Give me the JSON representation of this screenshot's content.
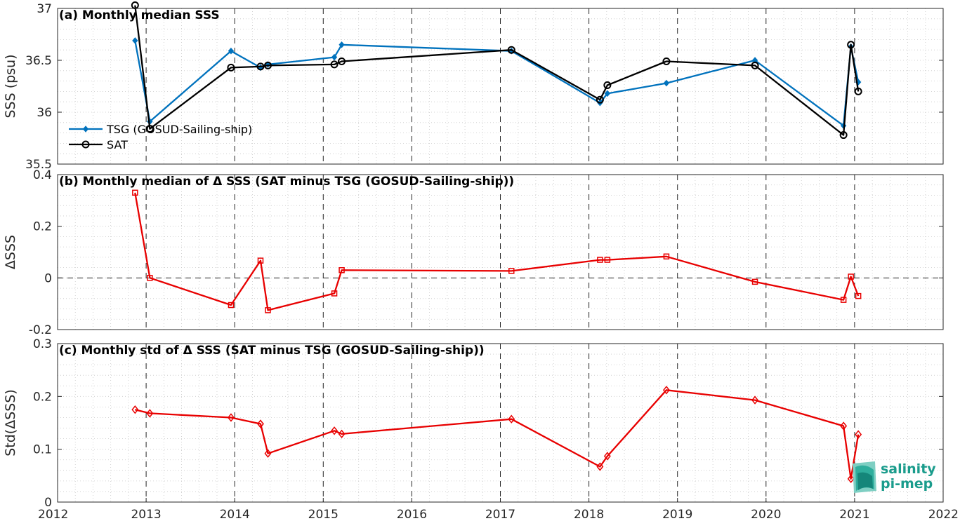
{
  "chart_data": [
    {
      "type": "line",
      "title": "(a) Monthly median SSS",
      "ylabel": "SSS (psu)",
      "ylim": [
        35.5,
        37
      ],
      "yticks": [
        35.5,
        36,
        36.5,
        37
      ],
      "ytick_labels": [
        "35.5",
        "36",
        "36.5",
        "37"
      ],
      "xlim": [
        "2012-01-01",
        "2022-01-01"
      ],
      "grid": true,
      "legend": "left",
      "series": [
        {
          "name": "TSG (GOSUD-Sailing-ship)",
          "color": "#0072BD",
          "marker": "diamond-filled",
          "x": [
            "2012-11",
            "2013-01",
            "2013-12",
            "2014-04",
            "2014-05",
            "2015-02",
            "2015-03",
            "2017-02",
            "2018-02",
            "2018-03",
            "2018-11",
            "2019-11",
            "2020-11",
            "2020-12",
            "2021-01"
          ],
          "values": [
            36.69,
            35.91,
            36.59,
            36.43,
            36.46,
            36.53,
            36.65,
            36.59,
            36.09,
            36.18,
            36.28,
            36.5,
            35.87,
            36.63,
            36.29
          ]
        },
        {
          "name": "SAT",
          "color": "#000000",
          "marker": "circle-open",
          "x": [
            "2012-11",
            "2013-01",
            "2013-12",
            "2014-04",
            "2014-05",
            "2015-02",
            "2015-03",
            "2017-02",
            "2018-02",
            "2018-03",
            "2018-11",
            "2019-11",
            "2020-11",
            "2020-12",
            "2021-01"
          ],
          "values": [
            37.03,
            35.84,
            36.43,
            36.44,
            36.45,
            36.46,
            36.49,
            36.6,
            36.12,
            36.26,
            36.49,
            36.45,
            35.78,
            36.65,
            36.2
          ]
        }
      ]
    },
    {
      "type": "line",
      "title": "(b) Monthly median of Δ SSS (SAT minus TSG (GOSUD-Sailing-ship))",
      "ylabel": "ΔSSS",
      "ylim": [
        -0.2,
        0.4
      ],
      "yticks": [
        -0.2,
        0,
        0.2,
        0.4
      ],
      "ytick_labels": [
        "-0.2",
        "0",
        "0.2",
        "0.4"
      ],
      "xlim": [
        "2012-01-01",
        "2022-01-01"
      ],
      "grid": true,
      "zero_line": true,
      "series": [
        {
          "color": "#E80000",
          "marker": "square-open",
          "x": [
            "2012-11",
            "2013-01",
            "2013-12",
            "2014-04",
            "2014-05",
            "2015-02",
            "2015-03",
            "2017-02",
            "2018-02",
            "2018-03",
            "2018-11",
            "2019-11",
            "2020-11",
            "2020-12",
            "2021-01"
          ],
          "values": [
            0.33,
            0.0,
            -0.105,
            0.067,
            -0.125,
            -0.06,
            0.03,
            0.027,
            0.07,
            0.07,
            0.083,
            -0.015,
            -0.085,
            0.005,
            -0.07
          ]
        }
      ]
    },
    {
      "type": "line",
      "title": "(c) Monthly std of Δ SSS (SAT minus TSG (GOSUD-Sailing-ship))",
      "ylabel": "Std(ΔSSS)",
      "ylim": [
        0,
        0.3
      ],
      "yticks": [
        0,
        0.1,
        0.2,
        0.3
      ],
      "ytick_labels": [
        "0",
        "0.1",
        "0.2",
        "0.3"
      ],
      "xlim": [
        "2012-01-01",
        "2022-01-01"
      ],
      "xticks": [
        "2012",
        "2013",
        "2014",
        "2015",
        "2016",
        "2017",
        "2018",
        "2019",
        "2020",
        "2021",
        "2022"
      ],
      "grid": true,
      "series": [
        {
          "color": "#E80000",
          "marker": "diamond-open",
          "x": [
            "2012-11",
            "2013-01",
            "2013-12",
            "2014-04",
            "2014-05",
            "2015-02",
            "2015-03",
            "2017-02",
            "2018-02",
            "2018-03",
            "2018-11",
            "2019-11",
            "2020-11",
            "2020-12",
            "2021-01"
          ],
          "values": [
            0.175,
            0.168,
            0.16,
            0.148,
            0.092,
            0.135,
            0.129,
            0.157,
            0.067,
            0.087,
            0.212,
            0.193,
            0.144,
            0.044,
            0.128
          ]
        }
      ]
    }
  ],
  "logo": {
    "line1": "salinity",
    "line2": "pi-mep",
    "color": "#1a9c8c"
  }
}
